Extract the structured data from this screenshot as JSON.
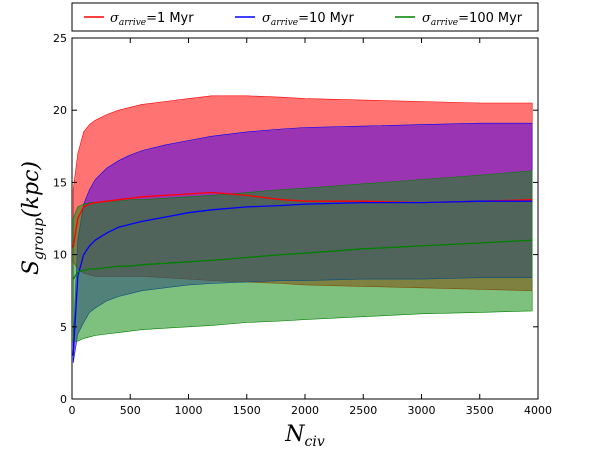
{
  "chart_data": {
    "type": "area",
    "xlabel": "N_civ",
    "ylabel": "S_group(kpc)",
    "xlim": [
      0,
      4000
    ],
    "ylim": [
      0,
      25
    ],
    "xticks": [
      0,
      500,
      1000,
      1500,
      2000,
      2500,
      3000,
      3500,
      4000
    ],
    "yticks": [
      0,
      5,
      10,
      15,
      20,
      25
    ],
    "grid": false,
    "legend_position": "top, outside plot",
    "x": [
      10,
      50,
      100,
      150,
      200,
      300,
      400,
      500,
      600,
      800,
      1000,
      1200,
      1500,
      1800,
      2000,
      2500,
      3000,
      3500,
      3950
    ],
    "series": [
      {
        "name": "σ_arrive = 1 Myr",
        "color": "#ff0000",
        "fill_color": "rgba(255,0,0,0.55)",
        "mean": [
          10.5,
          12.5,
          13.3,
          13.5,
          13.6,
          13.7,
          13.8,
          13.9,
          14.0,
          14.1,
          14.2,
          14.3,
          14.1,
          13.8,
          13.7,
          13.7,
          13.6,
          13.7,
          13.8
        ],
        "upper": [
          14.5,
          17.0,
          18.5,
          19.0,
          19.3,
          19.7,
          20.0,
          20.2,
          20.4,
          20.6,
          20.8,
          21.0,
          21.0,
          20.9,
          20.8,
          20.7,
          20.6,
          20.5,
          20.5
        ],
        "lower": [
          9.5,
          9.0,
          8.7,
          8.6,
          8.5,
          8.5,
          8.5,
          8.5,
          8.5,
          8.4,
          8.3,
          8.2,
          8.1,
          8.0,
          7.9,
          7.8,
          7.7,
          7.6,
          7.5
        ]
      },
      {
        "name": "σ_arrive = 10 Myr",
        "color": "#0000ff",
        "fill_color": "rgba(72,0,230,0.55)",
        "mean": [
          3.0,
          8.5,
          10.0,
          10.6,
          11.0,
          11.5,
          11.9,
          12.1,
          12.3,
          12.6,
          12.9,
          13.1,
          13.3,
          13.4,
          13.5,
          13.6,
          13.6,
          13.7,
          13.7
        ],
        "upper": [
          4.0,
          11.0,
          13.5,
          14.5,
          15.2,
          16.0,
          16.5,
          16.9,
          17.2,
          17.6,
          17.9,
          18.2,
          18.5,
          18.7,
          18.8,
          18.9,
          19.0,
          19.1,
          19.1
        ],
        "lower": [
          2.5,
          4.5,
          5.3,
          6.0,
          6.3,
          6.8,
          7.1,
          7.3,
          7.5,
          7.7,
          7.9,
          8.0,
          8.1,
          8.2,
          8.2,
          8.3,
          8.3,
          8.4,
          8.4
        ]
      },
      {
        "name": "σ_arrive = 100 Myr",
        "color": "#008000",
        "fill_color": "rgba(20,140,20,0.55)",
        "mean": [
          8.3,
          8.8,
          8.9,
          9.0,
          9.0,
          9.1,
          9.2,
          9.2,
          9.3,
          9.4,
          9.5,
          9.6,
          9.8,
          10.0,
          10.1,
          10.4,
          10.6,
          10.8,
          11.0
        ],
        "upper": [
          12.5,
          13.3,
          13.5,
          13.6,
          13.6,
          13.7,
          13.7,
          13.8,
          13.8,
          13.9,
          14.0,
          14.1,
          14.3,
          14.5,
          14.6,
          14.9,
          15.2,
          15.5,
          15.8
        ],
        "lower": [
          4.0,
          4.0,
          4.2,
          4.3,
          4.4,
          4.5,
          4.6,
          4.7,
          4.8,
          4.9,
          5.0,
          5.1,
          5.3,
          5.4,
          5.5,
          5.7,
          5.9,
          6.0,
          6.1
        ]
      }
    ],
    "legend": [
      {
        "sigma": "σ",
        "sub": "arrive",
        "eq": "=",
        "value": "1",
        "unit": "Myr"
      },
      {
        "sigma": "σ",
        "sub": "arrive",
        "eq": "=",
        "value": "10",
        "unit": "Myr"
      },
      {
        "sigma": "σ",
        "sub": "arrive",
        "eq": "=",
        "value": "100",
        "unit": "Myr"
      }
    ],
    "axis_text": {
      "x_main": "N",
      "x_sub": "civ",
      "y_main": "S",
      "y_sub": "group",
      "y_rest": "(kpc)"
    }
  }
}
